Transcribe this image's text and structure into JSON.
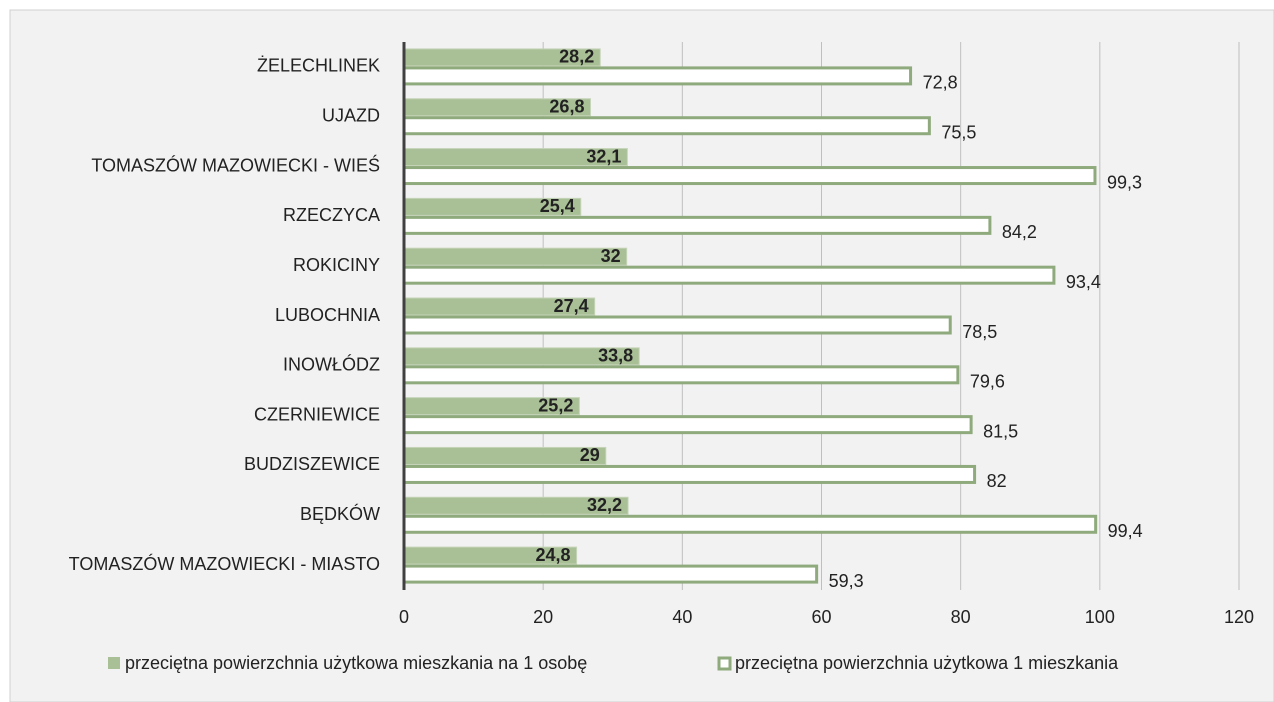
{
  "chart_data": {
    "type": "bar",
    "orientation": "horizontal",
    "categories": [
      "ŻELECHLINEK",
      "UJAZD",
      "TOMASZÓW MAZOWIECKI - WIEŚ",
      "RZECZYCA",
      "ROKICINY",
      "LUBOCHNIA",
      "INOWŁÓDZ",
      "CZERNIEWICE",
      "BUDZISZEWICE",
      "BĘDKÓW",
      "TOMASZÓW MAZOWIECKI - MIASTO"
    ],
    "series": [
      {
        "name": "przeciętna powierzchnia użytkowa mieszkania na 1 osobę",
        "color": "#a9bf96",
        "values": [
          28.2,
          26.8,
          32.1,
          25.4,
          32,
          27.4,
          33.8,
          25.2,
          29,
          32.2,
          24.8
        ],
        "value_labels": [
          "28,2",
          "26,8",
          "32,1",
          "25,4",
          "32",
          "27,4",
          "33,8",
          "25,2",
          "29",
          "32,2",
          "24,8"
        ]
      },
      {
        "name": "przeciętna powierzchnia użytkowa 1 mieszkania",
        "color": "#8faa7c",
        "values": [
          72.8,
          75.5,
          99.3,
          84.2,
          93.4,
          78.5,
          79.6,
          81.5,
          82,
          99.4,
          59.3
        ],
        "value_labels": [
          "72,8",
          "75,5",
          "99,3",
          "84,2",
          "93,4",
          "78,5",
          "79,6",
          "81,5",
          "82",
          "99,4",
          "59,3"
        ]
      }
    ],
    "xlim": [
      0,
      120
    ],
    "xticks": [
      0,
      20,
      40,
      60,
      80,
      100,
      120
    ],
    "grid": true,
    "legend": "bottom"
  }
}
